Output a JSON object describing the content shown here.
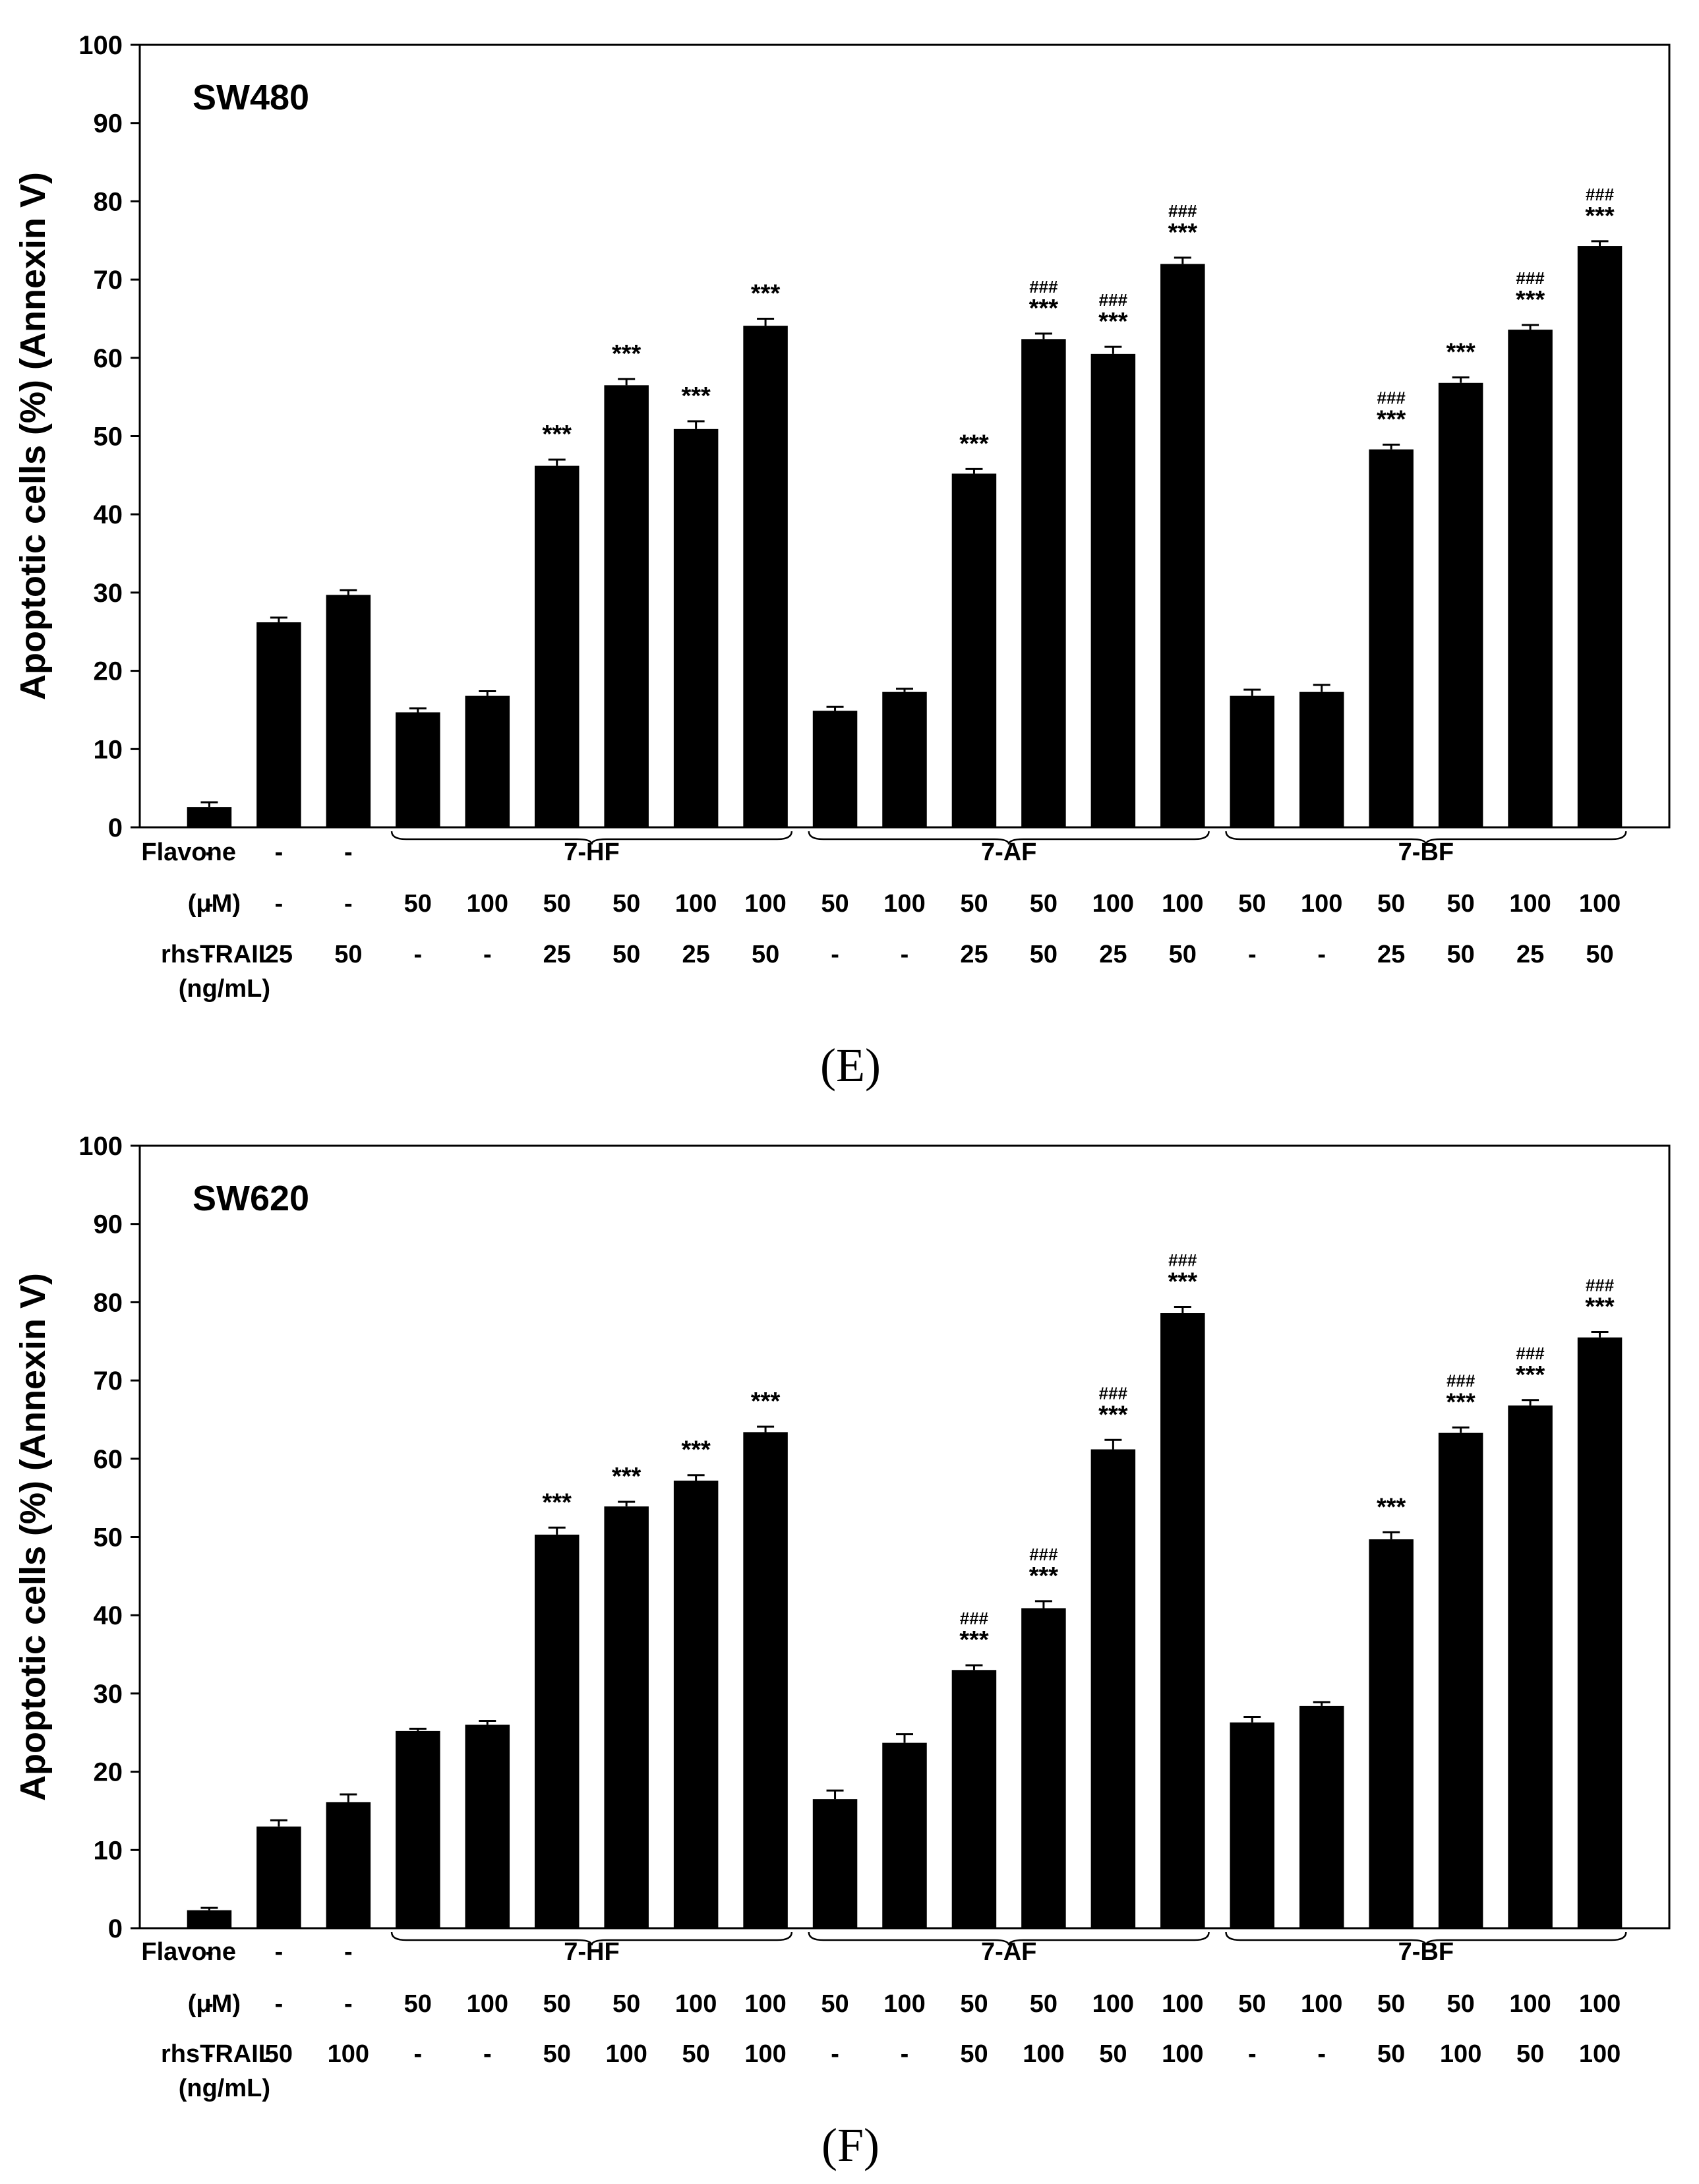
{
  "figure": {
    "chart_data": [
      {
        "type": "bar",
        "panel_label": "(E)",
        "title": "SW480",
        "ylabel": "Apoptotic cells  (%) (Annexin V)",
        "xlabel": "",
        "ylim": [
          0,
          100
        ],
        "yticks": [
          "0",
          "10",
          "20",
          "30",
          "40",
          "50",
          "60",
          "70",
          "80",
          "90",
          "100"
        ],
        "grid": false,
        "groups": [
          "7-HF",
          "7-AF",
          "7-BF"
        ],
        "row_labels": {
          "flavone": "Flavone",
          "um": "(μM)",
          "trail_1": "rhsTRAIL",
          "trail_2": "(ng/mL)"
        },
        "flavone": [
          "-",
          "-",
          "-",
          "",
          "",
          "",
          "",
          "",
          "",
          "",
          "",
          "",
          "",
          "",
          "",
          "",
          "",
          "",
          "",
          "",
          ""
        ],
        "um": [
          "-",
          "-",
          "-",
          "50",
          "100",
          "50",
          "50",
          "100",
          "100",
          "50",
          "100",
          "50",
          "50",
          "100",
          "100",
          "50",
          "100",
          "50",
          "50",
          "100",
          "100"
        ],
        "trail": [
          "-",
          "25",
          "50",
          "-",
          "-",
          "25",
          "50",
          "25",
          "50",
          "-",
          "-",
          "25",
          "50",
          "25",
          "50",
          "-",
          "-",
          "25",
          "50",
          "25",
          "50"
        ],
        "values": [
          2.6,
          26.2,
          29.7,
          14.7,
          16.8,
          46.2,
          56.5,
          50.9,
          64.1,
          14.9,
          17.3,
          45.2,
          62.4,
          60.5,
          72.0,
          16.8,
          17.3,
          48.3,
          56.8,
          63.6,
          74.3
        ],
        "errors": [
          0.6,
          0.6,
          0.6,
          0.5,
          0.6,
          0.8,
          0.8,
          1.0,
          0.9,
          0.5,
          0.4,
          0.6,
          0.7,
          0.9,
          0.8,
          0.8,
          0.9,
          0.6,
          0.7,
          0.6,
          0.6
        ],
        "sig_stars": [
          "",
          "",
          "",
          "",
          "",
          "***",
          "***",
          "***",
          "***",
          "",
          "",
          "***",
          "***",
          "***",
          "***",
          "",
          "",
          "***",
          "***",
          "***",
          "***"
        ],
        "sig_hash": [
          "",
          "",
          "",
          "",
          "",
          "",
          "",
          "",
          "",
          "",
          "",
          "",
          "###",
          "###",
          "###",
          "",
          "",
          "###",
          "",
          "###",
          "###"
        ]
      },
      {
        "type": "bar",
        "panel_label": "(F)",
        "title": "SW620",
        "ylabel": "Apoptotic cells  (%) (Annexin V)",
        "xlabel": "",
        "ylim": [
          0,
          100
        ],
        "yticks": [
          "0",
          "10",
          "20",
          "30",
          "40",
          "50",
          "60",
          "70",
          "80",
          "90",
          "100"
        ],
        "grid": false,
        "groups": [
          "7-HF",
          "7-AF",
          "7-BF"
        ],
        "row_labels": {
          "flavone": "Flavone",
          "um": "(μM)",
          "trail_1": "rhsTRAIL",
          "trail_2": "(ng/mL)"
        },
        "flavone": [
          "-",
          "-",
          "-",
          "",
          "",
          "",
          "",
          "",
          "",
          "",
          "",
          "",
          "",
          "",
          "",
          "",
          "",
          "",
          "",
          "",
          ""
        ],
        "um": [
          "-",
          "-",
          "-",
          "50",
          "100",
          "50",
          "50",
          "100",
          "100",
          "50",
          "100",
          "50",
          "50",
          "100",
          "100",
          "50",
          "100",
          "50",
          "50",
          "100",
          "100"
        ],
        "trail": [
          "-",
          "50",
          "100",
          "-",
          "-",
          "50",
          "100",
          "50",
          "100",
          "-",
          "-",
          "50",
          "100",
          "50",
          "100",
          "-",
          "-",
          "50",
          "100",
          "50",
          "100"
        ],
        "values": [
          2.3,
          13.0,
          16.1,
          25.2,
          26.0,
          50.3,
          53.9,
          57.2,
          63.4,
          16.5,
          23.7,
          33.0,
          40.9,
          61.2,
          78.6,
          26.3,
          28.4,
          49.7,
          63.3,
          66.8,
          75.5
        ],
        "errors": [
          0.3,
          0.8,
          1.0,
          0.3,
          0.5,
          0.9,
          0.6,
          0.7,
          0.7,
          1.1,
          1.1,
          0.6,
          0.9,
          1.2,
          0.8,
          0.7,
          0.5,
          0.9,
          0.7,
          0.7,
          0.7
        ],
        "sig_stars": [
          "",
          "",
          "",
          "",
          "",
          "***",
          "***",
          "***",
          "***",
          "",
          "",
          "***",
          "***",
          "***",
          "***",
          "",
          "",
          "***",
          "***",
          "***",
          "***"
        ],
        "sig_hash": [
          "",
          "",
          "",
          "",
          "",
          "",
          "",
          "",
          "",
          "",
          "",
          "###",
          "###",
          "###",
          "###",
          "",
          "",
          "",
          "###",
          "###",
          "###"
        ]
      }
    ]
  }
}
